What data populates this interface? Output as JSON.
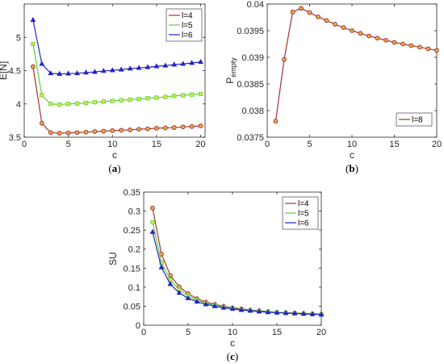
{
  "chart_data": [
    {
      "id": "a",
      "type": "line",
      "caption_paren_open": "(",
      "caption_letter": "a",
      "caption_paren_close": ")",
      "xlabel": "c",
      "ylabel": "E[N]",
      "xlim": [
        0,
        20.5
      ],
      "ylim": [
        3.5,
        5.5
      ],
      "xticks": [
        0,
        5,
        10,
        15,
        20
      ],
      "yticks": [
        3.5,
        4,
        4.5,
        5
      ],
      "ytick_labels": [
        "3.5",
        "4",
        "4.5",
        "5"
      ],
      "legend_position": "top-right",
      "x": [
        1,
        2,
        3,
        4,
        5,
        6,
        7,
        8,
        9,
        10,
        11,
        12,
        13,
        14,
        15,
        16,
        17,
        18,
        19,
        20
      ],
      "series": [
        {
          "name": "l=4",
          "color": "#a83232",
          "marker": "circle",
          "values": [
            4.56,
            3.71,
            3.57,
            3.56,
            3.565,
            3.57,
            3.575,
            3.585,
            3.59,
            3.6,
            3.605,
            3.61,
            3.62,
            3.625,
            3.635,
            3.64,
            3.645,
            3.655,
            3.66,
            3.67
          ]
        },
        {
          "name": "l=5",
          "color": "#5ad23c",
          "marker": "square",
          "values": [
            4.9,
            4.13,
            4.0,
            3.99,
            4.0,
            4.005,
            4.015,
            4.025,
            4.035,
            4.045,
            4.055,
            4.065,
            4.075,
            4.085,
            4.095,
            4.105,
            4.12,
            4.13,
            4.14,
            4.15
          ]
        },
        {
          "name": "l=6",
          "color": "#2323c8",
          "marker": "triangle",
          "values": [
            5.26,
            4.6,
            4.46,
            4.45,
            4.455,
            4.46,
            4.47,
            4.48,
            4.495,
            4.505,
            4.515,
            4.53,
            4.54,
            4.55,
            4.565,
            4.575,
            4.59,
            4.6,
            4.615,
            4.63
          ]
        }
      ]
    },
    {
      "id": "b",
      "type": "line",
      "caption_paren_open": "(",
      "caption_letter": "b",
      "caption_paren_close": ")",
      "xlabel": "c",
      "ylabel_main": "P",
      "ylabel_sub": "empty",
      "xlim": [
        0,
        20
      ],
      "ylim": [
        0.0375,
        0.04
      ],
      "xticks": [
        0,
        5,
        10,
        15,
        20
      ],
      "yticks": [
        0.0375,
        0.038,
        0.0385,
        0.039,
        0.0395,
        0.04
      ],
      "ytick_labels": [
        "0.0375",
        "0.038",
        "0.0385",
        "0.039",
        "0.0395",
        "0.04"
      ],
      "legend_position": "lower-right",
      "x": [
        1,
        2,
        3,
        4,
        5,
        6,
        7,
        8,
        9,
        10,
        11,
        12,
        13,
        14,
        15,
        16,
        17,
        18,
        19,
        20
      ],
      "series": [
        {
          "name": "l=8",
          "color": "#a83232",
          "marker": "circle",
          "values": [
            0.0378,
            0.03896,
            0.03985,
            0.03992,
            0.03984,
            0.03976,
            0.03969,
            0.03962,
            0.03956,
            0.0395,
            0.03945,
            0.0394,
            0.03936,
            0.03932,
            0.03928,
            0.03925,
            0.03922,
            0.03919,
            0.03916,
            0.03913
          ]
        }
      ]
    },
    {
      "id": "c",
      "type": "line",
      "caption_paren_open": "(",
      "caption_letter": "c",
      "caption_paren_close": ")",
      "xlabel": "c",
      "ylabel": "SU",
      "xlim": [
        0,
        20
      ],
      "ylim": [
        0,
        0.35
      ],
      "xticks": [
        0,
        5,
        10,
        15,
        20
      ],
      "yticks": [
        0,
        0.05,
        0.1,
        0.15,
        0.2,
        0.25,
        0.3,
        0.35
      ],
      "ytick_labels": [
        "0",
        "0.05",
        "0.1",
        "0.15",
        "0.2",
        "0.25",
        "0.3",
        "0.35"
      ],
      "legend_position": "top-right",
      "x": [
        1,
        2,
        3,
        4,
        5,
        6,
        7,
        8,
        9,
        10,
        11,
        12,
        13,
        14,
        15,
        16,
        17,
        18,
        19,
        20
      ],
      "series": [
        {
          "name": "l=4",
          "color": "#a83232",
          "marker": "circle",
          "values": [
            0.308,
            0.187,
            0.131,
            0.101,
            0.083,
            0.07,
            0.061,
            0.055,
            0.05,
            0.046,
            0.043,
            0.04,
            0.038,
            0.036,
            0.034,
            0.033,
            0.032,
            0.031,
            0.03,
            0.029
          ]
        },
        {
          "name": "l=5",
          "color": "#5ad23c",
          "marker": "square",
          "values": [
            0.271,
            0.165,
            0.119,
            0.093,
            0.077,
            0.066,
            0.058,
            0.052,
            0.048,
            0.044,
            0.041,
            0.039,
            0.037,
            0.035,
            0.034,
            0.032,
            0.031,
            0.03,
            0.029,
            0.028
          ]
        },
        {
          "name": "l=6",
          "color": "#2323c8",
          "marker": "triangle",
          "values": [
            0.245,
            0.152,
            0.108,
            0.085,
            0.071,
            0.062,
            0.055,
            0.05,
            0.046,
            0.043,
            0.04,
            0.038,
            0.036,
            0.034,
            0.033,
            0.032,
            0.031,
            0.03,
            0.029,
            0.028
          ]
        }
      ]
    }
  ]
}
